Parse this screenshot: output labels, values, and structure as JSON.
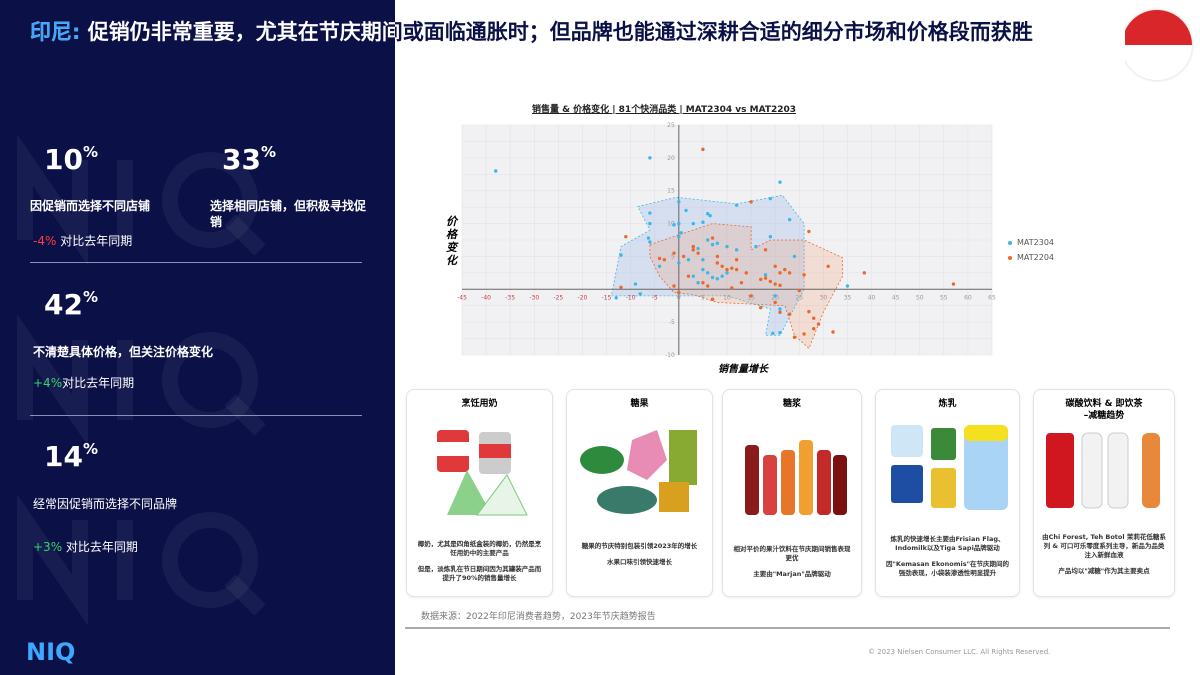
{
  "title": {
    "highlight": "印尼:",
    "text": " 促销仍非常重要，尤其在节庆期间或面临通胀时；但品牌也能通过深耕合适的细分市场和价格段而获胜"
  },
  "stats": [
    {
      "value": "10",
      "unit": "%",
      "label": "因促销而选择不同店铺",
      "change": "-4%",
      "change_text": " 对比去年同期"
    },
    {
      "value": "33",
      "unit": "%",
      "label": "选择相同店铺，但积极寻找促销"
    },
    {
      "value": "42",
      "unit": "%",
      "label": "不清楚具体价格，但关注价格变化",
      "change": "+4%",
      "change_text": "对比去年同期"
    },
    {
      "value": "14",
      "unit": "%",
      "label": "经常因促销而选择不同品牌",
      "change": "+3%",
      "change_text": " 对比去年同期"
    }
  ],
  "logo": "NIQ",
  "watermark": "NIQ",
  "colors": {
    "navy": "#0b1147",
    "accent": "#3ea8ff",
    "mat2304": "#3bb8e8",
    "mat2204": "#e8692a",
    "negative": "#ff3b3b",
    "positive": "#36d46d"
  },
  "chart_data": {
    "type": "scatter",
    "title": "销售量 & 价格变化 | 81个快消品类 | MAT2304 vs MAT2203",
    "xlabel": "销售量增长",
    "ylabel": "价格变化",
    "xlim": [
      -45,
      65
    ],
    "ylim": [
      -10,
      25
    ],
    "xticks": [
      -45,
      -40,
      -35,
      -30,
      -25,
      -20,
      -15,
      -10,
      -5,
      0,
      5,
      10,
      15,
      20,
      25,
      30,
      35,
      40,
      45,
      50,
      55,
      60,
      65
    ],
    "yticks": [
      -10,
      -5,
      0,
      5,
      10,
      15,
      20,
      25
    ],
    "grid": true,
    "legend": "right",
    "series": [
      {
        "name": "MAT2304",
        "points": [
          [
            -38,
            18
          ],
          [
            -6,
            20
          ],
          [
            21,
            16.3
          ],
          [
            19,
            13.8
          ],
          [
            0,
            13.3
          ],
          [
            1.5,
            12
          ],
          [
            6,
            11.5
          ],
          [
            6.5,
            11.2
          ],
          [
            12,
            12.8
          ],
          [
            23,
            10.6
          ],
          [
            -6,
            11.6
          ],
          [
            -6,
            10
          ],
          [
            -1,
            9.8
          ],
          [
            0,
            10
          ],
          [
            3,
            10
          ],
          [
            5,
            10.2
          ],
          [
            -6.3,
            7.8
          ],
          [
            -6,
            7.2
          ],
          [
            0,
            8
          ],
          [
            0.5,
            8.6
          ],
          [
            19,
            8
          ],
          [
            -12,
            5.2
          ],
          [
            -9,
            0.8
          ],
          [
            -13,
            -1.3
          ],
          [
            -4,
            3.5
          ],
          [
            0,
            4
          ],
          [
            2,
            4.5
          ],
          [
            3,
            6.5
          ],
          [
            4,
            6.2
          ],
          [
            5,
            4.5
          ],
          [
            6,
            7.5
          ],
          [
            7,
            6.8
          ],
          [
            8,
            7
          ],
          [
            10,
            6.5
          ],
          [
            12,
            6
          ],
          [
            16,
            6.5
          ],
          [
            24,
            5
          ],
          [
            35,
            0.5
          ],
          [
            3,
            2
          ],
          [
            4,
            1
          ],
          [
            5,
            3
          ],
          [
            6,
            2.5
          ],
          [
            7,
            1.8
          ],
          [
            8,
            1.6
          ],
          [
            9,
            2
          ],
          [
            10,
            2.5
          ],
          [
            18,
            2.2
          ],
          [
            20,
            -1
          ],
          [
            21,
            -3
          ],
          [
            19.5,
            -6.7
          ],
          [
            21,
            -6.6
          ],
          [
            -8,
            -0.7
          ]
        ],
        "hull": [
          [
            -8.5,
            12.6
          ],
          [
            -0.5,
            14
          ],
          [
            12,
            13
          ],
          [
            21.5,
            14.3
          ],
          [
            26,
            10
          ],
          [
            26,
            0
          ],
          [
            21,
            -7
          ],
          [
            18,
            -7
          ],
          [
            19,
            -3
          ],
          [
            10,
            -1
          ],
          [
            -9,
            -1
          ],
          [
            -14,
            -1
          ],
          [
            -12,
            6.5
          ],
          [
            -6,
            9
          ]
        ]
      },
      {
        "name": "MAT2204",
        "points": [
          [
            5,
            21.3
          ],
          [
            -11,
            8
          ],
          [
            15,
            13.3
          ],
          [
            27,
            8.8
          ],
          [
            -4,
            4.7
          ],
          [
            -3,
            4.5
          ],
          [
            -1,
            5.5
          ],
          [
            1,
            5
          ],
          [
            3,
            6
          ],
          [
            3,
            6.5
          ],
          [
            4,
            5.5
          ],
          [
            7,
            7.8
          ],
          [
            8,
            5
          ],
          [
            8,
            4
          ],
          [
            9,
            3.5
          ],
          [
            10,
            3
          ],
          [
            11,
            3.2
          ],
          [
            12,
            4.5
          ],
          [
            12,
            3
          ],
          [
            14,
            2.5
          ],
          [
            18,
            6
          ],
          [
            20,
            3.5
          ],
          [
            21,
            2.5
          ],
          [
            22,
            3
          ],
          [
            23,
            2.5
          ],
          [
            26,
            2.2
          ],
          [
            31,
            3.5
          ],
          [
            38.5,
            2.5
          ],
          [
            57,
            0.8
          ],
          [
            2,
            2
          ],
          [
            5,
            1
          ],
          [
            6,
            0.5
          ],
          [
            11,
            0.2
          ],
          [
            13,
            1
          ],
          [
            15,
            -1
          ],
          [
            17,
            1.5
          ],
          [
            18,
            1.7
          ],
          [
            19,
            1.2
          ],
          [
            20,
            0.8
          ],
          [
            21,
            0.6
          ],
          [
            17,
            -2.8
          ],
          [
            20,
            -2
          ],
          [
            21,
            -3.5
          ],
          [
            23,
            -3.8
          ],
          [
            25,
            -0.2
          ],
          [
            27,
            -3.4
          ],
          [
            28,
            -4.4
          ],
          [
            29,
            -5.3
          ],
          [
            28,
            -6
          ],
          [
            26,
            -6.8
          ],
          [
            32,
            -6.5
          ],
          [
            24,
            -7.3
          ],
          [
            -12,
            0.3
          ],
          [
            -1,
            0.5
          ],
          [
            0,
            -0.5
          ],
          [
            7,
            -1.5
          ]
        ],
        "hull": [
          [
            -6,
            6.8
          ],
          [
            7,
            10
          ],
          [
            15,
            9.5
          ],
          [
            15,
            6
          ],
          [
            19,
            7.5
          ],
          [
            26,
            7.5
          ],
          [
            34,
            4.8
          ],
          [
            34,
            2
          ],
          [
            30,
            -3.5
          ],
          [
            27,
            -9
          ],
          [
            24,
            -7
          ],
          [
            22,
            -2.5
          ],
          [
            8,
            -2
          ],
          [
            3,
            -0.8
          ],
          [
            -1,
            -0.5
          ],
          [
            -4,
            2
          ],
          [
            -6,
            5
          ]
        ]
      }
    ]
  },
  "cards": [
    {
      "title": "烹饪用奶",
      "p1": "椰奶，尤其是四角纸盒装的椰奶，仍然是烹饪用奶中的主要产品",
      "p2": "但是，淡炼乳在节日期间因为其罐装产品而提升了90%的销售量增长"
    },
    {
      "title": "糖果",
      "p1": "糖果的节庆特别包装引领2023年的增长",
      "p2": "水果口味引领快速增长"
    },
    {
      "title": "糖浆",
      "p1": "相对平价的果汁饮料在节庆期间销售表现更优",
      "p2": "主要由\"Marjan\"品牌驱动"
    },
    {
      "title": "炼乳",
      "p1": "炼乳的快速增长主要由Frisian Flag、Indomilk以及Tiga Sapi品牌驱动",
      "p2": "因\"Kemasan Ekonomis\"在节庆期间的强劲表现，小袋装渗透性明显提升"
    },
    {
      "title": "碳酸饮料 & 即饮茶\n–减糖趋势",
      "p1": "由Chi Forest, Teh Botol 茉莉花低糖系列 & 可口可乐零度系列主导，新品为品类注入新鲜血液",
      "p2": "产品均以\"减糖\"作为其主要卖点"
    }
  ],
  "source": "数据来源：2022年印尼消费者趋势，2023年节庆趋势报告",
  "copyright": "© 2023 Nielsen Consumer LLC. All Rights Reserved."
}
